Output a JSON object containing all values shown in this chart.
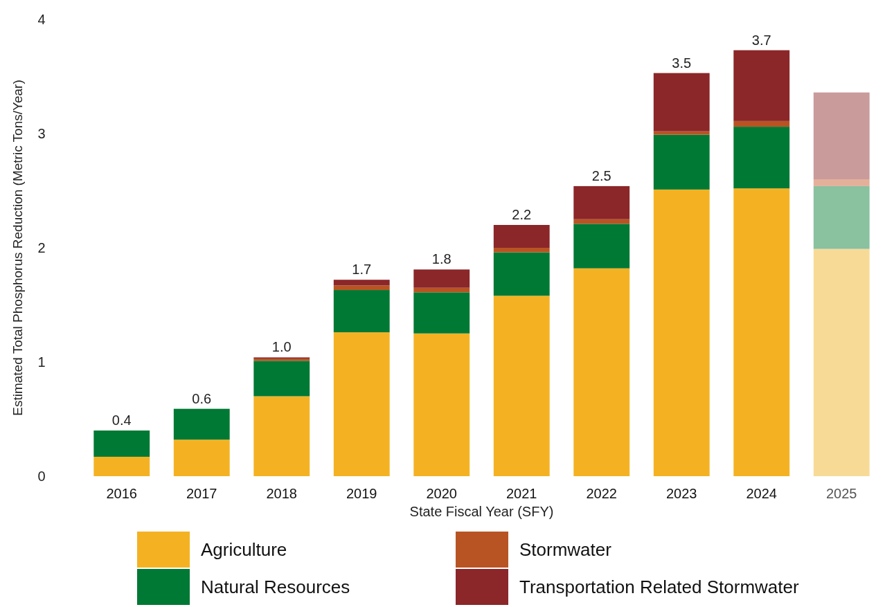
{
  "chart_data": {
    "type": "bar",
    "stacked": true,
    "xlabel": "State Fiscal Year (SFY)",
    "ylabel": "Estimated Total Phosphorus Reduction (Metric Tons/Year)",
    "categories": [
      "2016",
      "2017",
      "2018",
      "2019",
      "2020",
      "2021",
      "2022",
      "2023",
      "2024",
      "2025"
    ],
    "ylim": [
      0,
      4
    ],
    "yticks": [
      0,
      1,
      2,
      3,
      4
    ],
    "grid": false,
    "legend": "bottom",
    "series": [
      {
        "name": "Agriculture",
        "color": "#f4b223",
        "colors": [
          "#f4b223",
          "#f4b223",
          "#f4b223",
          "#f4b223",
          "#f4b223",
          "#f4b223",
          "#f4b223",
          "#f4b223",
          "#f4b223",
          "#f8da97"
        ],
        "values": [
          0.17,
          0.32,
          0.7,
          1.26,
          1.25,
          1.58,
          1.82,
          2.51,
          2.52,
          1.99
        ]
      },
      {
        "name": "Natural Resources",
        "color": "#007934",
        "colors": [
          "#007934",
          "#007934",
          "#007934",
          "#007934",
          "#007934",
          "#007934",
          "#007934",
          "#007934",
          "#007934",
          "#8ac19f"
        ],
        "values": [
          0.23,
          0.27,
          0.31,
          0.37,
          0.36,
          0.38,
          0.39,
          0.48,
          0.54,
          0.55
        ]
      },
      {
        "name": "Stormwater",
        "color": "#b85423",
        "colors": [
          "#b85423",
          "#b85423",
          "#b85423",
          "#b85423",
          "#b85423",
          "#b85423",
          "#b85423",
          "#b85423",
          "#b85423",
          "#e4b09a"
        ],
        "values": [
          0,
          0,
          0.02,
          0.04,
          0.04,
          0.04,
          0.04,
          0.03,
          0.05,
          0.06
        ]
      },
      {
        "name": "Transportation Related Stormwater",
        "color": "#8b2629",
        "colors": [
          "#8b2629",
          "#8b2629",
          "#8b2629",
          "#8b2629",
          "#8b2629",
          "#8b2629",
          "#8b2629",
          "#8b2629",
          "#8b2629",
          "#c99b9b"
        ],
        "values": [
          0,
          0,
          0.01,
          0.05,
          0.16,
          0.2,
          0.29,
          0.51,
          0.62,
          0.76
        ]
      }
    ],
    "totals": [
      "0.4",
      "0.6",
      "1.0",
      "1.7",
      "1.8",
      "2.2",
      "2.5",
      "3.5",
      "3.7",
      null
    ]
  }
}
